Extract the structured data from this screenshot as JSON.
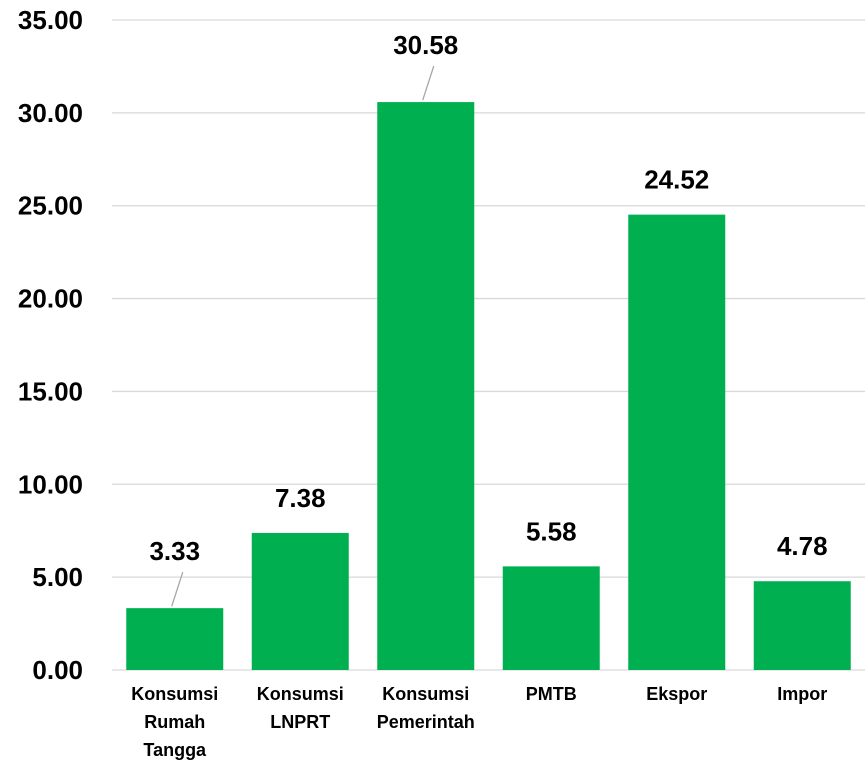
{
  "chart_data": {
    "type": "bar",
    "categories": [
      [
        "Konsumsi",
        "Rumah",
        "Tangga"
      ],
      [
        "Konsumsi",
        "LNPRT"
      ],
      [
        "Konsumsi",
        "Pemerintah"
      ],
      [
        "PMTB"
      ],
      [
        "Ekspor"
      ],
      [
        "Impor"
      ]
    ],
    "values": [
      3.33,
      7.38,
      30.58,
      5.58,
      24.52,
      4.78
    ],
    "value_labels": [
      "3.33",
      "7.38",
      "30.58",
      "5.58",
      "24.52",
      "4.78"
    ],
    "yticks": [
      "0.00",
      "5.00",
      "10.00",
      "15.00",
      "20.00",
      "25.00",
      "30.00",
      "35.00"
    ],
    "ylim": [
      0,
      35
    ],
    "grid": true,
    "title": "",
    "xlabel": "",
    "ylabel": "",
    "colors": {
      "bar": "#00B050",
      "grid": "#D9D9D9",
      "leader": "#A6A6A6"
    }
  }
}
